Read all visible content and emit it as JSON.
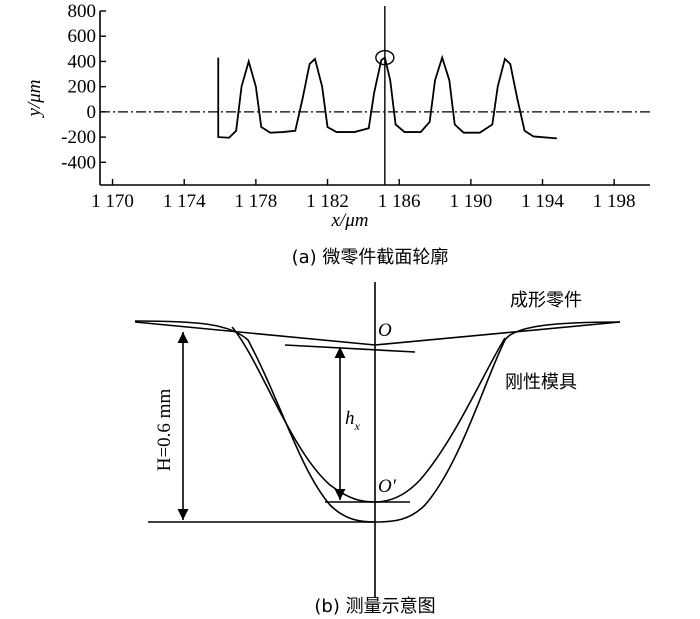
{
  "chart_data": {
    "type": "line",
    "x_label": "x/μm",
    "y_label": "y/μm",
    "caption": "(a) 微零件截面轮廓",
    "x": [
      1175.9,
      1175.9,
      1176.5,
      1176.9,
      1177.2,
      1177.6,
      1178.0,
      1178.3,
      1178.8,
      1179.5,
      1180.2,
      1180.6,
      1181.0,
      1181.3,
      1181.7,
      1182.0,
      1182.5,
      1183.5,
      1184.3,
      1184.6,
      1185.0,
      1185.2,
      1185.5,
      1185.8,
      1186.3,
      1187.2,
      1187.7,
      1188.0,
      1188.4,
      1188.8,
      1189.1,
      1189.6,
      1190.5,
      1191.2,
      1191.5,
      1191.9,
      1192.2,
      1192.6,
      1193.0,
      1193.5,
      1194.8
    ],
    "series": [
      {
        "color": "#000000",
        "values": [
          430,
          -200,
          -205,
          -150,
          200,
          400,
          200,
          -120,
          -165,
          -160,
          -150,
          100,
          380,
          420,
          200,
          -120,
          -160,
          -160,
          -130,
          150,
          410,
          430,
          250,
          -100,
          -160,
          -160,
          -80,
          250,
          430,
          250,
          -100,
          -165,
          -165,
          -100,
          200,
          420,
          380,
          100,
          -150,
          -195,
          -210
        ]
      }
    ],
    "highlight": {
      "x": 1185.2,
      "y": 430
    },
    "xlim": [
      1169.3,
      1200
    ],
    "ylim": [
      -580,
      800
    ],
    "xticks": [
      {
        "value": 1170,
        "label": "1 170"
      },
      {
        "value": 1174,
        "label": "1 174"
      },
      {
        "value": 1178,
        "label": "1 178"
      },
      {
        "value": 1182,
        "label": "1 182"
      },
      {
        "value": 1186,
        "label": "1 186"
      },
      {
        "value": 1190,
        "label": "1 190"
      },
      {
        "value": 1194,
        "label": "1 194"
      },
      {
        "value": 1198,
        "label": "1 198"
      }
    ],
    "yticks": [
      -400,
      -200,
      0,
      200,
      400,
      600,
      800
    ]
  },
  "diagram": {
    "part_label": "成形零件",
    "mold_label": "刚性模具",
    "o_label": "O",
    "o2_label": "O′",
    "hx_label": {
      "main": "h",
      "sub": "x"
    },
    "h_label": "H=0.6 mm",
    "caption": "(b) 测量示意图"
  }
}
